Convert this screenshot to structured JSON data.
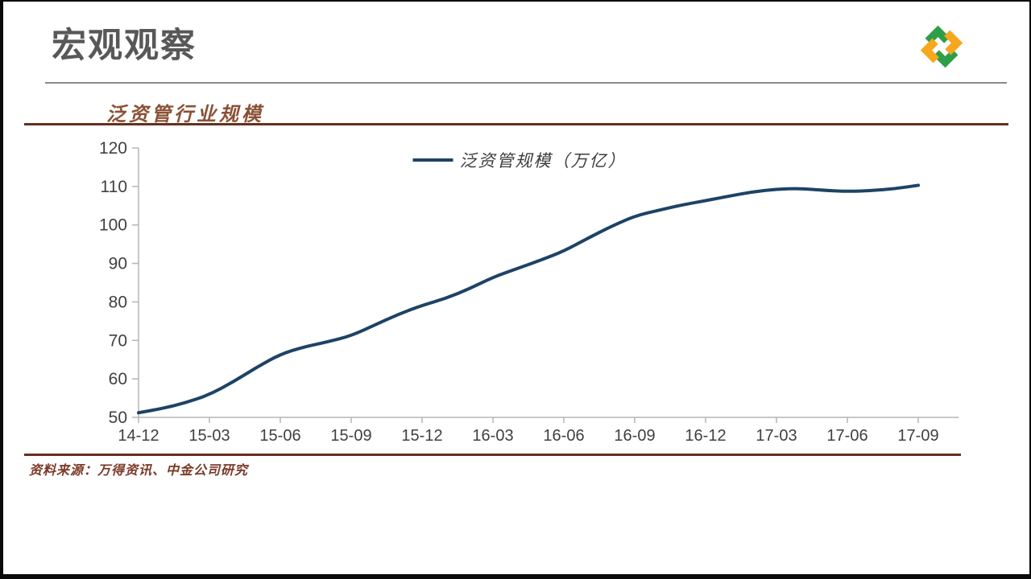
{
  "header": {
    "title": "宏观观察",
    "logo": {
      "name": "pinwheel-logo",
      "green": "#2f9e49",
      "orange": "#f7a71d"
    }
  },
  "chart_section": {
    "title": "泛资管行业规模",
    "source": "资料来源：万得资讯、中金公司研究"
  },
  "chart_data": {
    "type": "line",
    "title": "泛资管行业规模",
    "legend": [
      "泛资管规模（万亿）"
    ],
    "legend_position": "top-center",
    "grid": false,
    "line_color": "#1d4366",
    "axis_color": "#b5b5b5",
    "label_color": "#404040",
    "ylim": [
      50,
      120
    ],
    "yticks": [
      120,
      110,
      100,
      90,
      80,
      70,
      60,
      50
    ],
    "categories": [
      "14-12",
      "15-03",
      "15-06",
      "15-09",
      "15-12",
      "16-03",
      "16-06",
      "16-09",
      "16-12",
      "17-03",
      "17-06",
      "17-09"
    ],
    "values": [
      51.2,
      55.9,
      66.4,
      71.2,
      79.1,
      86.4,
      93.2,
      102.3,
      106.3,
      109.3,
      108.7,
      110.3
    ],
    "monthly_values": [
      51.2,
      52.3,
      53.8,
      55.9,
      59.2,
      63.0,
      66.4,
      68.3,
      69.6,
      71.2,
      74.0,
      76.8,
      79.1,
      80.9,
      83.4,
      86.4,
      88.6,
      90.8,
      93.2,
      96.5,
      99.6,
      102.3,
      103.8,
      105.2,
      106.3,
      107.5,
      108.6,
      109.3,
      109.5,
      109.0,
      108.7,
      108.9,
      109.4,
      110.3
    ]
  }
}
